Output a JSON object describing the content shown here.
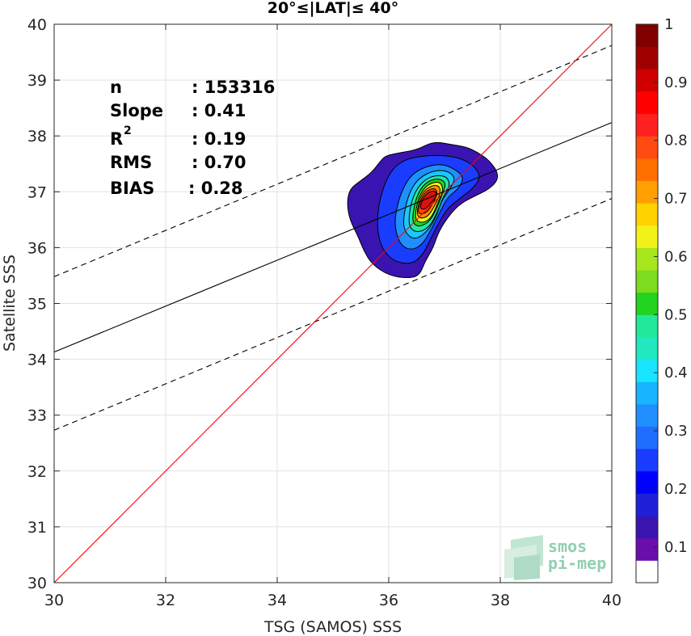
{
  "chart_data": {
    "type": "heatmap",
    "title": "20°≤|LAT|≤ 40°",
    "xlabel": "TSG (SAMOS) SSS",
    "ylabel": "Satellite SSS",
    "xlim": [
      30,
      40
    ],
    "ylim": [
      30,
      40
    ],
    "xticks": [
      "30",
      "32",
      "34",
      "36",
      "38",
      "40"
    ],
    "yticks": [
      "30",
      "31",
      "32",
      "33",
      "34",
      "35",
      "36",
      "37",
      "38",
      "39",
      "40"
    ],
    "grid": true,
    "stats": {
      "n_label": "n",
      "n_value": ": 153316",
      "slope_label": "Slope",
      "slope_value": ": 0.41",
      "r2_label": "R",
      "r2_sup": "2",
      "r2_value": ": 0.19",
      "rms_label": "RMS",
      "rms_value": ": 0.70",
      "bias_label": "BIAS",
      "bias_value": ": 0.28"
    },
    "lines": {
      "one_to_one": {
        "points": [
          [
            30,
            30
          ],
          [
            40,
            40
          ]
        ],
        "color": "#ff0000"
      },
      "regression": {
        "points": [
          [
            30,
            34.13
          ],
          [
            40,
            38.24
          ]
        ],
        "color": "#000000"
      },
      "upper_bound": {
        "points": [
          [
            30,
            35.48
          ],
          [
            40,
            39.62
          ]
        ],
        "color": "#000000",
        "dash": true
      },
      "lower_bound": {
        "points": [
          [
            30,
            32.73
          ],
          [
            40,
            36.88
          ]
        ],
        "color": "#000000",
        "dash": true
      }
    },
    "density_center": {
      "x": 36.65,
      "y": 36.9
    },
    "contour_levels": [
      {
        "level": 0.05,
        "color": "#3a14b0",
        "points": [
          [
            35.25,
            36.8
          ],
          [
            35.3,
            37.05
          ],
          [
            35.5,
            37.2
          ],
          [
            35.7,
            37.35
          ],
          [
            35.85,
            37.55
          ],
          [
            35.95,
            37.65
          ],
          [
            36.2,
            37.7
          ],
          [
            36.5,
            37.75
          ],
          [
            36.8,
            37.9
          ],
          [
            37.1,
            37.85
          ],
          [
            37.4,
            37.8
          ],
          [
            37.6,
            37.7
          ],
          [
            37.75,
            37.6
          ],
          [
            37.85,
            37.5
          ],
          [
            37.95,
            37.35
          ],
          [
            37.95,
            37.2
          ],
          [
            37.8,
            37.05
          ],
          [
            37.6,
            36.95
          ],
          [
            37.3,
            36.8
          ],
          [
            37.1,
            36.6
          ],
          [
            36.9,
            36.3
          ],
          [
            36.8,
            36.0
          ],
          [
            36.65,
            35.75
          ],
          [
            36.55,
            35.5
          ],
          [
            36.35,
            35.45
          ],
          [
            36.0,
            35.5
          ],
          [
            35.7,
            35.7
          ],
          [
            35.55,
            35.95
          ],
          [
            35.45,
            36.2
          ],
          [
            35.3,
            36.5
          ]
        ]
      },
      {
        "level": 0.15,
        "color": "#1a3cff",
        "points": [
          [
            35.8,
            36.6
          ],
          [
            35.85,
            36.9
          ],
          [
            35.95,
            37.2
          ],
          [
            36.1,
            37.45
          ],
          [
            36.35,
            37.6
          ],
          [
            36.7,
            37.65
          ],
          [
            37.0,
            37.65
          ],
          [
            37.3,
            37.6
          ],
          [
            37.55,
            37.45
          ],
          [
            37.65,
            37.25
          ],
          [
            37.5,
            37.05
          ],
          [
            37.3,
            36.9
          ],
          [
            37.05,
            36.7
          ],
          [
            36.9,
            36.45
          ],
          [
            36.75,
            36.15
          ],
          [
            36.6,
            35.85
          ],
          [
            36.4,
            35.7
          ],
          [
            36.1,
            35.75
          ],
          [
            35.9,
            35.95
          ],
          [
            35.8,
            36.25
          ]
        ]
      },
      {
        "level": 0.25,
        "color": "#1f8fff",
        "points": [
          [
            36.1,
            36.4
          ],
          [
            36.15,
            36.75
          ],
          [
            36.25,
            37.05
          ],
          [
            36.4,
            37.3
          ],
          [
            36.65,
            37.45
          ],
          [
            36.95,
            37.5
          ],
          [
            37.2,
            37.4
          ],
          [
            37.35,
            37.25
          ],
          [
            37.25,
            37.05
          ],
          [
            37.05,
            36.9
          ],
          [
            36.9,
            36.6
          ],
          [
            36.75,
            36.3
          ],
          [
            36.6,
            36.05
          ],
          [
            36.4,
            35.95
          ],
          [
            36.2,
            36.05
          ]
        ]
      },
      {
        "level": 0.35,
        "color": "#18c8ff",
        "points": [
          [
            36.25,
            36.4
          ],
          [
            36.3,
            36.75
          ],
          [
            36.4,
            37.05
          ],
          [
            36.55,
            37.25
          ],
          [
            36.8,
            37.38
          ],
          [
            37.05,
            37.38
          ],
          [
            37.2,
            37.25
          ],
          [
            37.1,
            37.05
          ],
          [
            36.95,
            36.85
          ],
          [
            36.85,
            36.55
          ],
          [
            36.7,
            36.3
          ],
          [
            36.5,
            36.15
          ],
          [
            36.35,
            36.2
          ]
        ]
      },
      {
        "level": 0.45,
        "color": "#21e8a8",
        "points": [
          [
            36.35,
            36.45
          ],
          [
            36.4,
            36.8
          ],
          [
            36.5,
            37.05
          ],
          [
            36.65,
            37.22
          ],
          [
            36.85,
            37.3
          ],
          [
            37.05,
            37.27
          ],
          [
            37.1,
            37.1
          ],
          [
            36.98,
            36.92
          ],
          [
            36.88,
            36.65
          ],
          [
            36.75,
            36.4
          ],
          [
            36.58,
            36.28
          ],
          [
            36.42,
            36.3
          ]
        ]
      },
      {
        "level": 0.55,
        "color": "#21d21e",
        "points": [
          [
            36.42,
            36.5
          ],
          [
            36.47,
            36.82
          ],
          [
            36.57,
            37.06
          ],
          [
            36.72,
            37.2
          ],
          [
            36.9,
            37.24
          ],
          [
            37.03,
            37.16
          ],
          [
            36.97,
            36.98
          ],
          [
            36.87,
            36.72
          ],
          [
            36.74,
            36.47
          ],
          [
            36.58,
            36.38
          ],
          [
            36.47,
            36.4
          ]
        ]
      },
      {
        "level": 0.65,
        "color": "#f2f21a",
        "points": [
          [
            36.47,
            36.55
          ],
          [
            36.52,
            36.85
          ],
          [
            36.62,
            37.05
          ],
          [
            36.76,
            37.16
          ],
          [
            36.92,
            37.18
          ],
          [
            36.98,
            37.05
          ],
          [
            36.9,
            36.85
          ],
          [
            36.8,
            36.6
          ],
          [
            36.68,
            36.46
          ],
          [
            36.53,
            36.45
          ]
        ]
      },
      {
        "level": 0.75,
        "color": "#ff8c00",
        "points": [
          [
            36.5,
            36.6
          ],
          [
            36.55,
            36.87
          ],
          [
            36.65,
            37.04
          ],
          [
            36.8,
            37.12
          ],
          [
            36.92,
            37.1
          ],
          [
            36.92,
            36.95
          ],
          [
            36.82,
            36.74
          ],
          [
            36.7,
            36.55
          ],
          [
            36.56,
            36.52
          ]
        ]
      },
      {
        "level": 0.85,
        "color": "#ff4a10",
        "points": [
          [
            36.52,
            36.65
          ],
          [
            36.58,
            36.88
          ],
          [
            36.68,
            37.02
          ],
          [
            36.82,
            37.07
          ],
          [
            36.88,
            36.98
          ],
          [
            36.8,
            36.8
          ],
          [
            36.68,
            36.62
          ],
          [
            36.56,
            36.6
          ]
        ]
      },
      {
        "level": 0.95,
        "color": "#dd1010",
        "points": [
          [
            36.55,
            36.7
          ],
          [
            36.62,
            36.9
          ],
          [
            36.72,
            37.0
          ],
          [
            36.84,
            37.02
          ],
          [
            36.86,
            36.92
          ],
          [
            36.76,
            36.8
          ],
          [
            36.65,
            36.68
          ]
        ]
      }
    ],
    "colorbar": {
      "ticks": [
        "0.1",
        "0.2",
        "0.3",
        "0.4",
        "0.5",
        "0.6",
        "0.7",
        "0.8",
        "0.9",
        "1"
      ],
      "colors": [
        "#ffffff",
        "#6a0dad",
        "#3a14b0",
        "#2020d8",
        "#0000ff",
        "#1a3cff",
        "#1f6eff",
        "#1f8fff",
        "#18b4ff",
        "#18e4ff",
        "#21e8c0",
        "#21e89a",
        "#21d21e",
        "#7ddc1e",
        "#a8e61e",
        "#f2f21a",
        "#ffd200",
        "#ffa000",
        "#ff7000",
        "#ff4a10",
        "#ff2020",
        "#ff0000",
        "#d00000",
        "#a00000",
        "#800000"
      ]
    }
  },
  "logo": {
    "line1": "smos",
    "line2": "pi-mep"
  }
}
